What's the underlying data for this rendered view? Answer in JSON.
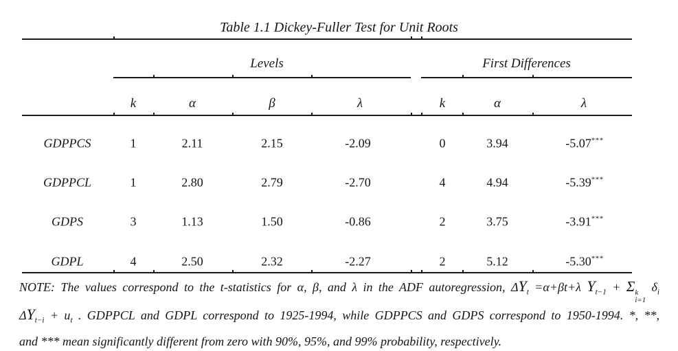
{
  "title": "Table 1.1 Dickey-Fuller Test for Unit Roots",
  "table": {
    "groups": [
      {
        "label": "Levels"
      },
      {
        "label": "First Differences"
      }
    ],
    "columns": {
      "levels": [
        "k",
        "α",
        "β",
        "λ"
      ],
      "first_differences": [
        "k",
        "α",
        "λ"
      ]
    },
    "rows": [
      {
        "label": "GDPPCS",
        "levels": {
          "k": "1",
          "alpha": "2.11",
          "beta": "2.15",
          "lambda": "-2.09"
        },
        "first_differences": {
          "k": "0",
          "alpha": "3.94",
          "lambda": "-5.07",
          "significance": "***"
        }
      },
      {
        "label": "GDPPCL",
        "levels": {
          "k": "1",
          "alpha": "2.80",
          "beta": "2.79",
          "lambda": "-2.70"
        },
        "first_differences": {
          "k": "4",
          "alpha": "4.94",
          "lambda": "-5.39",
          "significance": "***"
        }
      },
      {
        "label": "GDPS",
        "levels": {
          "k": "3",
          "alpha": "1.13",
          "beta": "1.50",
          "lambda": "-0.86"
        },
        "first_differences": {
          "k": "2",
          "alpha": "3.75",
          "lambda": "-3.91",
          "significance": "***"
        }
      },
      {
        "label": "GDPL",
        "levels": {
          "k": "4",
          "alpha": "2.50",
          "beta": "2.32",
          "lambda": "-2.27"
        },
        "first_differences": {
          "k": "2",
          "alpha": "5.12",
          "lambda": "-5.30",
          "significance": "***"
        }
      }
    ]
  },
  "note": {
    "lines": [
      [
        {
          "t": "tx",
          "s": "NOTE: The values correspond to the t-statistics for α,  β, and λ in the ADF autoregression,  Δ"
        },
        {
          "t": "var",
          "s": "Y"
        },
        {
          "t": "sub",
          "s": "t"
        },
        {
          "t": "tx",
          "s": " =α+βt+λ "
        },
        {
          "t": "var",
          "s": "Y"
        },
        {
          "t": "sub",
          "s": "t−1"
        },
        {
          "t": "tx",
          "s": " + "
        },
        {
          "t": "sum",
          "s": "Σ",
          "sup": "k",
          "sub": "i=1"
        },
        {
          "t": "tx",
          "s": " δ"
        },
        {
          "t": "sub",
          "s": "i"
        }
      ],
      [
        {
          "t": "tx",
          "s": "Δ"
        },
        {
          "t": "var",
          "s": "Y"
        },
        {
          "t": "sub",
          "s": "t−i"
        },
        {
          "t": "tx",
          "s": " + u"
        },
        {
          "t": "sub",
          "s": "t"
        },
        {
          "t": "tx",
          "s": " .  GDPPCL and GDPL correspond to 1925-1994, while GDPPCS and GDPS correspond to 1950-1994. *, **,"
        }
      ],
      [
        {
          "t": "tx",
          "s": "and *** mean significantly different from zero with 90%, 95%, and 99% probability, respectively."
        }
      ]
    ]
  }
}
